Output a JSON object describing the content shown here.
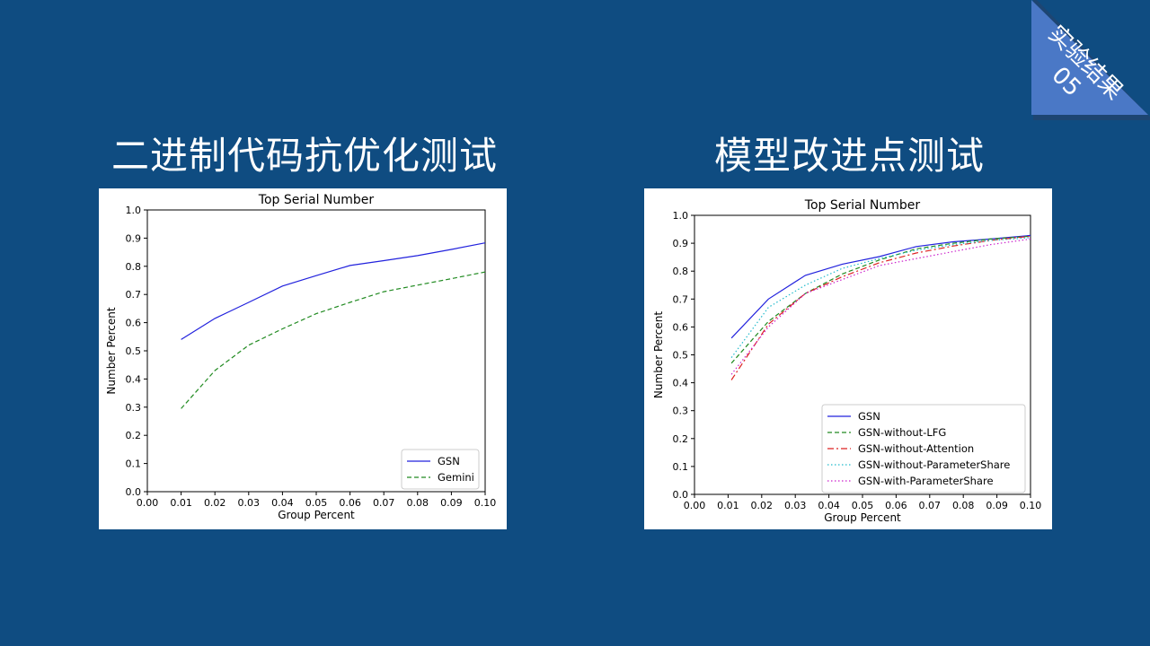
{
  "slide": {
    "corner_label": "实验结果",
    "corner_number": "05",
    "left_title": "二进制代码抗优化测试",
    "right_title": "模型改进点测试",
    "colors": {
      "background": "#0f4c81",
      "corner": "#4a78c6"
    }
  },
  "chart_data": [
    {
      "type": "line",
      "title": "Top Serial Number",
      "xlabel": "Group Percent",
      "ylabel": "Number Percent",
      "xlim": [
        0,
        0.1
      ],
      "ylim": [
        0,
        1.0
      ],
      "xticks": [
        "0.00",
        "0.01",
        "0.02",
        "0.03",
        "0.04",
        "0.05",
        "0.06",
        "0.07",
        "0.08",
        "0.09",
        "0.10"
      ],
      "yticks": [
        "0.0",
        "0.1",
        "0.2",
        "0.3",
        "0.4",
        "0.5",
        "0.6",
        "0.7",
        "0.8",
        "0.9",
        "1.0"
      ],
      "legend_position": "lower-right",
      "series": [
        {
          "name": "GSN",
          "color": "#2222dd",
          "style": "solid",
          "x": [
            0.01,
            0.02,
            0.03,
            0.04,
            0.05,
            0.06,
            0.07,
            0.08,
            0.09,
            0.1
          ],
          "y": [
            0.54,
            0.615,
            0.672,
            0.73,
            0.767,
            0.803,
            0.82,
            0.838,
            0.86,
            0.883
          ]
        },
        {
          "name": "Gemini",
          "color": "#228b22",
          "style": "dashed",
          "x": [
            0.01,
            0.02,
            0.03,
            0.04,
            0.05,
            0.06,
            0.07,
            0.08,
            0.09,
            0.1
          ],
          "y": [
            0.295,
            0.43,
            0.52,
            0.578,
            0.632,
            0.672,
            0.71,
            0.733,
            0.756,
            0.78
          ]
        }
      ]
    },
    {
      "type": "line",
      "title": "Top Serial Number",
      "xlabel": "Group Percent",
      "ylabel": "Number Percent",
      "xlim": [
        0,
        0.1
      ],
      "ylim": [
        0,
        1.0
      ],
      "xticks": [
        "0.00",
        "0.01",
        "0.02",
        "0.03",
        "0.04",
        "0.05",
        "0.06",
        "0.07",
        "0.08",
        "0.09",
        "0.10"
      ],
      "yticks": [
        "0.0",
        "0.1",
        "0.2",
        "0.3",
        "0.4",
        "0.5",
        "0.6",
        "0.7",
        "0.8",
        "0.9",
        "1.0"
      ],
      "legend_position": "lower-right",
      "series": [
        {
          "name": "GSN",
          "color": "#2222dd",
          "style": "solid",
          "x": [
            0.011,
            0.022,
            0.033,
            0.044,
            0.055,
            0.066,
            0.077,
            0.088,
            0.1
          ],
          "y": [
            0.56,
            0.7,
            0.785,
            0.825,
            0.852,
            0.888,
            0.905,
            0.915,
            0.928
          ]
        },
        {
          "name": "GSN-without-LFG",
          "color": "#228b22",
          "style": "dashed",
          "x": [
            0.011,
            0.022,
            0.033,
            0.044,
            0.055,
            0.066,
            0.077,
            0.088,
            0.1
          ],
          "y": [
            0.47,
            0.62,
            0.72,
            0.79,
            0.84,
            0.88,
            0.9,
            0.915,
            0.925
          ]
        },
        {
          "name": "GSN-without-Attention",
          "color": "#dd2222",
          "style": "dashdot",
          "x": [
            0.011,
            0.022,
            0.033,
            0.044,
            0.055,
            0.066,
            0.077,
            0.088,
            0.1
          ],
          "y": [
            0.41,
            0.61,
            0.72,
            0.78,
            0.83,
            0.865,
            0.89,
            0.91,
            0.925
          ]
        },
        {
          "name": "GSN-without-ParameterShare",
          "color": "#22bbcc",
          "style": "dotted",
          "x": [
            0.011,
            0.022,
            0.033,
            0.044,
            0.055,
            0.066,
            0.077,
            0.088,
            0.1
          ],
          "y": [
            0.49,
            0.67,
            0.75,
            0.81,
            0.845,
            0.875,
            0.895,
            0.91,
            0.92
          ]
        },
        {
          "name": "GSN-with-ParameterShare",
          "color": "#cc22cc",
          "style": "dotted",
          "x": [
            0.011,
            0.022,
            0.033,
            0.044,
            0.055,
            0.066,
            0.077,
            0.088,
            0.1
          ],
          "y": [
            0.43,
            0.6,
            0.72,
            0.77,
            0.82,
            0.845,
            0.87,
            0.895,
            0.915
          ]
        }
      ]
    }
  ]
}
